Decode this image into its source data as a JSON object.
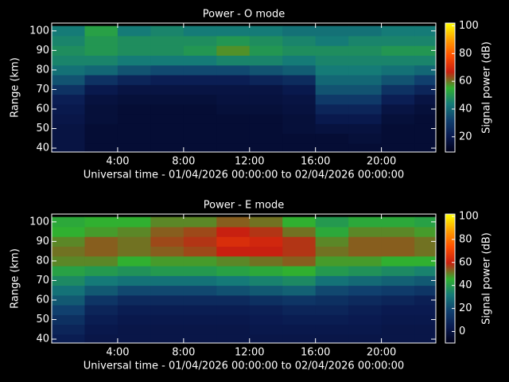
{
  "chart_data": [
    {
      "type": "heatmap",
      "title": "Power - O mode",
      "x_label": "Universal time - 01/04/2026 00:00:00 to 02/04/2026 00:00:00",
      "y_label": "Range (km)",
      "colorbar_label": "Signal power (dB)",
      "x": [
        1,
        3,
        5,
        7,
        9,
        11,
        13,
        15,
        17,
        19,
        21,
        23
      ],
      "y": [
        40,
        45,
        50,
        55,
        60,
        65,
        70,
        75,
        80,
        85,
        90,
        95,
        100
      ],
      "z": [
        [
          18,
          15,
          15,
          15,
          15,
          15,
          15,
          15,
          15,
          15,
          15,
          15
        ],
        [
          18,
          15,
          15,
          15,
          15,
          15,
          15,
          15,
          15,
          16,
          15,
          15
        ],
        [
          18,
          15,
          15,
          15,
          15,
          15,
          15,
          16,
          17,
          17,
          15,
          15
        ],
        [
          19,
          16,
          15,
          15,
          15,
          15,
          15,
          16,
          20,
          20,
          16,
          15
        ],
        [
          20,
          16,
          15,
          15,
          15,
          16,
          16,
          17,
          24,
          24,
          18,
          16
        ],
        [
          22,
          17,
          16,
          16,
          16,
          17,
          17,
          18,
          30,
          30,
          22,
          18
        ],
        [
          28,
          20,
          18,
          18,
          18,
          18,
          18,
          20,
          36,
          36,
          28,
          24
        ],
        [
          36,
          28,
          24,
          22,
          22,
          22,
          24,
          26,
          40,
          40,
          36,
          32
        ],
        [
          42,
          40,
          36,
          34,
          34,
          34,
          36,
          38,
          44,
          44,
          42,
          40
        ],
        [
          46,
          46,
          44,
          44,
          44,
          46,
          46,
          44,
          46,
          46,
          46,
          46
        ],
        [
          48,
          50,
          48,
          48,
          50,
          58,
          50,
          48,
          48,
          48,
          50,
          50
        ],
        [
          46,
          50,
          48,
          48,
          48,
          50,
          48,
          46,
          44,
          46,
          46,
          46
        ],
        [
          44,
          52,
          44,
          46,
          44,
          44,
          44,
          42,
          42,
          42,
          44,
          44
        ]
      ],
      "xlim": [
        0,
        23.3
      ],
      "ylim": [
        38,
        104
      ],
      "xticks": [
        {
          "value": 4,
          "label": "4:00"
        },
        {
          "value": 8,
          "label": "8:00"
        },
        {
          "value": 12,
          "label": "12:00"
        },
        {
          "value": 16,
          "label": "16:00"
        },
        {
          "value": 20,
          "label": "20:00"
        }
      ],
      "yticks": [
        40,
        50,
        60,
        70,
        80,
        90,
        100
      ],
      "clim": [
        9,
        102
      ],
      "cticks": [
        20,
        40,
        60,
        80,
        100
      ],
      "colormap": [
        "#000018",
        "#0a1a50",
        "#10406e",
        "#157a78",
        "#30b030",
        "#c82010",
        "#ff5000",
        "#ffa000",
        "#ffff00"
      ]
    },
    {
      "type": "heatmap",
      "title": "Power - E mode",
      "x_label": "Universal time - 01/04/2026 00:00:00 to 02/04/2026 00:00:00",
      "y_label": "Range (km)",
      "colorbar_label": "Signal power (dB)",
      "x": [
        1,
        3,
        5,
        7,
        9,
        11,
        13,
        15,
        17,
        19,
        21,
        23
      ],
      "y": [
        40,
        45,
        50,
        55,
        60,
        65,
        70,
        75,
        80,
        85,
        90,
        95,
        100
      ],
      "z": [
        [
          5,
          2,
          2,
          2,
          2,
          2,
          2,
          2,
          2,
          2,
          2,
          2
        ],
        [
          8,
          3,
          2,
          2,
          2,
          2,
          3,
          3,
          3,
          3,
          2,
          2
        ],
        [
          12,
          5,
          3,
          3,
          3,
          3,
          4,
          5,
          5,
          4,
          3,
          3
        ],
        [
          18,
          8,
          5,
          5,
          5,
          5,
          6,
          8,
          8,
          6,
          4,
          4
        ],
        [
          24,
          14,
          10,
          10,
          10,
          10,
          12,
          14,
          12,
          10,
          8,
          6
        ],
        [
          30,
          24,
          20,
          20,
          20,
          22,
          24,
          26,
          20,
          18,
          16,
          14
        ],
        [
          36,
          32,
          30,
          30,
          30,
          32,
          34,
          36,
          30,
          28,
          26,
          24
        ],
        [
          42,
          40,
          38,
          40,
          40,
          42,
          44,
          46,
          40,
          38,
          36,
          34
        ],
        [
          50,
          50,
          46,
          48,
          48,
          50,
          52,
          54,
          48,
          48,
          46,
          46
        ],
        [
          52,
          54,
          52,
          54,
          56,
          60,
          60,
          58,
          52,
          54,
          54,
          52
        ],
        [
          50,
          54,
          52,
          56,
          58,
          64,
          62,
          58,
          50,
          54,
          54,
          52
        ],
        [
          46,
          48,
          50,
          54,
          56,
          60,
          58,
          52,
          44,
          50,
          50,
          48
        ],
        [
          44,
          46,
          46,
          50,
          50,
          54,
          52,
          46,
          40,
          44,
          44,
          42
        ]
      ],
      "xlim": [
        0,
        23.3
      ],
      "ylim": [
        38,
        104
      ],
      "xticks": [
        {
          "value": 4,
          "label": "4:00"
        },
        {
          "value": 8,
          "label": "8:00"
        },
        {
          "value": 12,
          "label": "12:00"
        },
        {
          "value": 16,
          "label": "16:00"
        },
        {
          "value": 20,
          "label": "20:00"
        }
      ],
      "yticks": [
        40,
        50,
        60,
        70,
        80,
        90,
        100
      ],
      "clim": [
        -10,
        102
      ],
      "cticks": [
        0,
        20,
        40,
        60,
        80,
        100
      ],
      "colormap": [
        "#000018",
        "#0a1a50",
        "#10406e",
        "#157a78",
        "#30b030",
        "#c82010",
        "#ff5000",
        "#ffa000",
        "#ffff00"
      ]
    }
  ]
}
